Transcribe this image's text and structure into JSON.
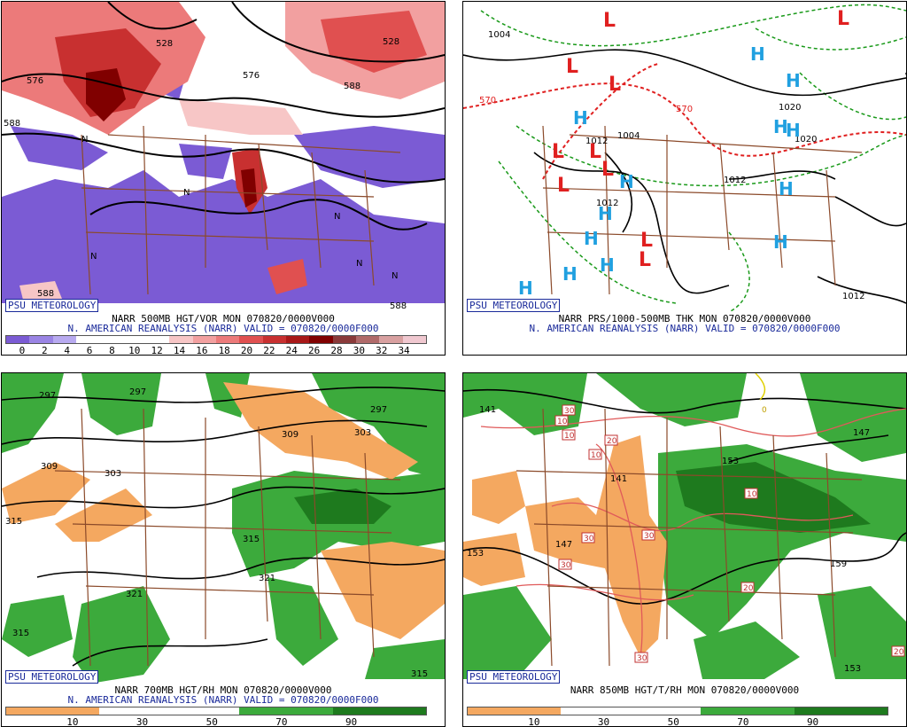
{
  "panels": [
    {
      "badge": "PSU METEOROLOGY",
      "title": "NARR 500MB HGT/VOR MON 070820/0000V000",
      "subtitle": "N. AMERICAN REANALYSIS (NARR) VALID = 070820/0000F000",
      "scale_labels": [
        "0",
        "2",
        "4",
        "6",
        "8",
        "10",
        "12",
        "14",
        "16",
        "18",
        "20",
        "22",
        "24",
        "26",
        "28",
        "30",
        "32",
        "34"
      ],
      "contour_labels": [
        "576",
        "588",
        "576",
        "588",
        "588",
        "528",
        "528",
        "588"
      ],
      "vort_labels": [
        "N",
        "N",
        "N",
        "N",
        "N",
        "N"
      ]
    },
    {
      "badge": "PSU METEOROLOGY",
      "title": "NARR PRS/1000-500MB THK MON 070820/0000V000",
      "subtitle": "N. AMERICAN REANALYSIS (NARR) VALID = 070820/0000F000",
      "isobar_labels": [
        "1004",
        "1012",
        "1004",
        "1012",
        "1012",
        "1020",
        "1020",
        "1012",
        "570",
        "570"
      ],
      "low_symbols": [
        "L",
        "L",
        "L",
        "L",
        "L",
        "L",
        "L",
        "L",
        "L",
        "L"
      ],
      "high_symbols": [
        "H",
        "H",
        "H",
        "H",
        "H",
        "H",
        "H",
        "H",
        "H",
        "H",
        "H",
        "H",
        "H"
      ]
    },
    {
      "badge": "PSU METEOROLOGY",
      "title": "NARR 700MB HGT/RH MON 070820/0000V000",
      "subtitle": "N. AMERICAN REANALYSIS (NARR) VALID = 070820/0000F000",
      "scale_labels": [
        "10",
        "30",
        "50",
        "70",
        "90"
      ],
      "contour_labels": [
        "297",
        "297",
        "297",
        "309",
        "303",
        "309",
        "303",
        "315",
        "315",
        "321",
        "321",
        "315",
        "315"
      ]
    },
    {
      "badge": "PSU METEOROLOGY",
      "title": "NARR 850MB HGT/T/RH MON 070820/0000V000",
      "subtitle": "",
      "scale_labels": [
        "10",
        "30",
        "50",
        "70",
        "90"
      ],
      "contour_labels": [
        "141",
        "147",
        "153",
        "141",
        "153",
        "159",
        "153",
        "147"
      ],
      "temp_labels": [
        "10",
        "10",
        "20",
        "10",
        "30",
        "30",
        "30",
        "30",
        "10",
        "20",
        "20",
        "30",
        "0"
      ]
    }
  ],
  "colors": {
    "vort_purple": "#7b5bd4",
    "vort_reds": [
      "#f7c6c6",
      "#f2a0a0",
      "#ec7a7a",
      "#e05050",
      "#c83030",
      "#a81818",
      "#800000"
    ],
    "rh_green": "#3caa3c",
    "rh_dkgreen": "#1e7a1e",
    "rh_orange": "#f4a860",
    "low_red": "#e02020",
    "high_blue": "#20a0e0",
    "state_brown": "#8b4a2a",
    "thk_green": "#1a9a1a"
  },
  "vort_scale_colors": [
    "#7b5bd4",
    "#9a84e4",
    "#b8aaf0",
    "#ffffff",
    "#ffffff",
    "#ffffff",
    "#ffffff",
    "#f7c6c6",
    "#f2a0a0",
    "#ec7a7a",
    "#e05050",
    "#c83030",
    "#a81818",
    "#800000",
    "#8a3a3a",
    "#b06a6a",
    "#d8a0a0",
    "#f0c8d0"
  ],
  "rh_scale_colors": [
    "#f4a860",
    "#f4a860",
    "#ffffff",
    "#ffffff",
    "#ffffff",
    "#3caa3c",
    "#3caa3c",
    "#1e7a1e",
    "#1e7a1e"
  ],
  "rh_scale_colors_850": [
    "#f4a860",
    "#f4a860",
    "#ffffff",
    "#ffffff",
    "#ffffff",
    "#3caa3c",
    "#3caa3c",
    "#1e7a1e",
    "#1e7a1e"
  ]
}
